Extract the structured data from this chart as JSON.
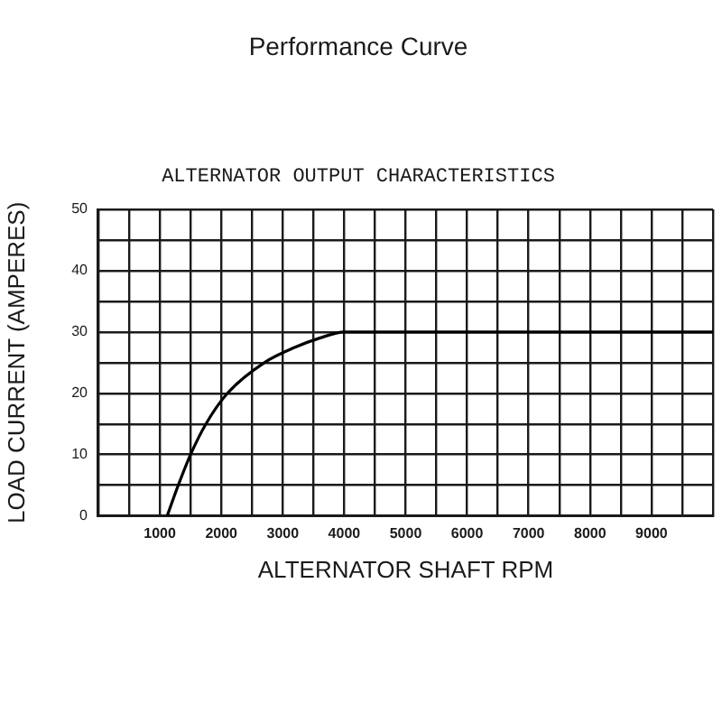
{
  "chart_data": {
    "type": "line",
    "title": "Performance Curve",
    "subtitle": "ALTERNATOR OUTPUT CHARACTERISTICS",
    "xlabel": "ALTERNATOR SHAFT RPM",
    "ylabel": "LOAD CURRENT (AMPERES)",
    "x": [
      1120,
      1300,
      1500,
      1750,
      2100,
      2700,
      3200,
      3600,
      4000,
      10000
    ],
    "series": [
      {
        "color": "#000000",
        "values": [
          0,
          5,
          10,
          15,
          20,
          25,
          27.5,
          29,
          30,
          30
        ]
      }
    ],
    "xlim": [
      0,
      10000
    ],
    "ylim": [
      0,
      50
    ],
    "xticks": [
      {
        "value": 0,
        "label": null
      },
      {
        "value": 500,
        "label": null
      },
      1000,
      {
        "value": 1500,
        "label": null
      },
      2000,
      {
        "value": 2500,
        "label": null
      },
      3000,
      {
        "value": 3500,
        "label": null
      },
      4000,
      {
        "value": 4500,
        "label": null
      },
      5000,
      {
        "value": 5500,
        "label": null
      },
      6000,
      {
        "value": 6500,
        "label": null
      },
      7000,
      {
        "value": 7500,
        "label": null
      },
      8000,
      {
        "value": 8500,
        "label": null
      },
      9000,
      {
        "value": 9500,
        "label": null
      },
      {
        "value": 10000,
        "label": null
      }
    ],
    "yticks": [
      0,
      {
        "value": 5,
        "label": null
      },
      10,
      {
        "value": 15,
        "label": null
      },
      20,
      {
        "value": 25,
        "label": null
      },
      30,
      {
        "value": 35,
        "label": null
      },
      40,
      {
        "value": 45,
        "label": null
      },
      50
    ],
    "grid": true,
    "marker": "none",
    "line_style": "solid"
  }
}
